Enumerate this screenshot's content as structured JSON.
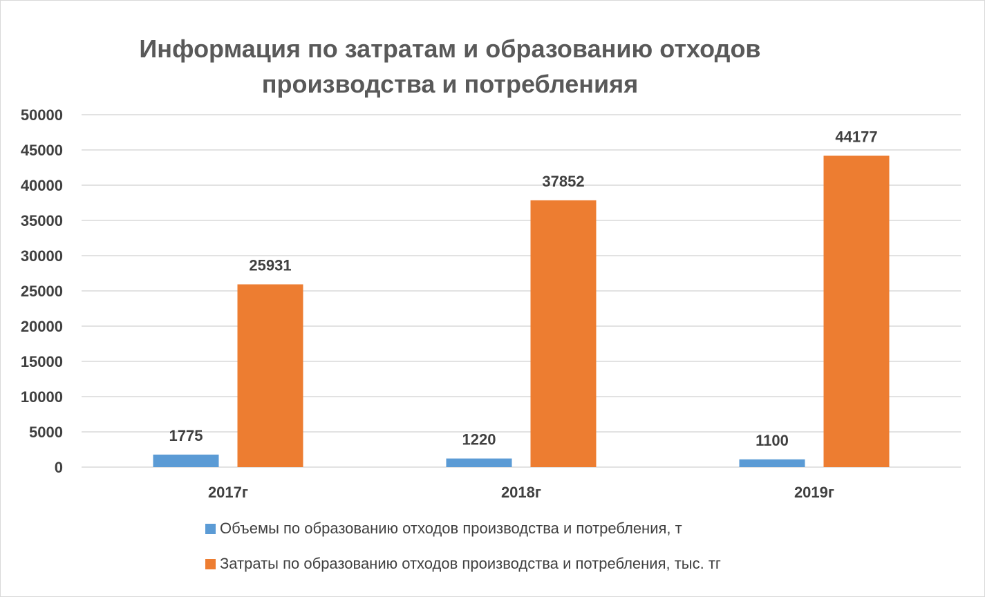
{
  "chart_data": {
    "type": "bar",
    "title_lines": [
      "Информация по затратам и образованию отходов",
      "производства и потребленияя"
    ],
    "categories": [
      "2017г",
      "2018г",
      "2019г"
    ],
    "series": [
      {
        "name": "Объемы по образованию отходов производства и потребления, т",
        "values": [
          1775,
          1220,
          1100
        ],
        "color": "#5b9bd5"
      },
      {
        "name": "Затраты по образованию отходов производства и потребления, тыс. тг",
        "values": [
          25931,
          37852,
          44177
        ],
        "color": "#ed7d31"
      }
    ],
    "ylim": [
      0,
      50000
    ],
    "yticks": [
      0,
      5000,
      10000,
      15000,
      20000,
      25000,
      30000,
      35000,
      40000,
      45000,
      50000
    ],
    "grid": true,
    "legend_position": "bottom",
    "data_labels": true,
    "gridline_color": "#d9d9d9"
  }
}
